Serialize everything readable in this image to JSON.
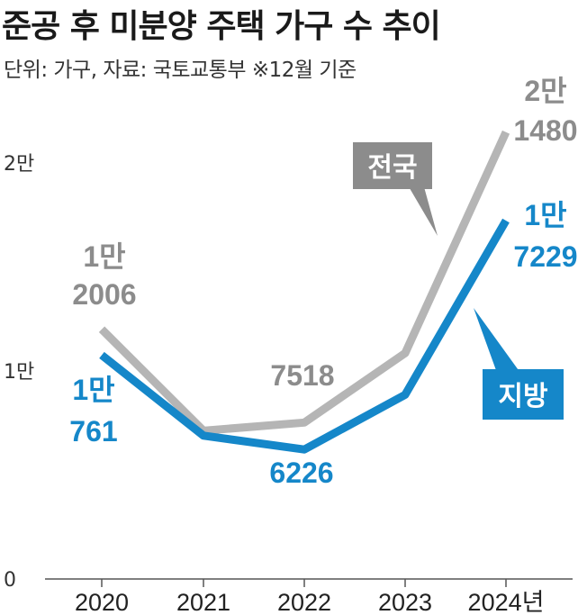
{
  "header": {
    "title": "준공 후 미분양 주택 가구 수 추이",
    "subtitle": "단위: 가구, 자료: 국토교통부 ※12월 기준"
  },
  "colors": {
    "national": "#b5b5b5",
    "regional": "#1587c9",
    "national_badge": "#8c8c8c",
    "regional_badge": "#1587c9"
  },
  "chart_data": {
    "type": "line",
    "categories": [
      "2020",
      "2021",
      "2022",
      "2023",
      "2024년"
    ],
    "ylim": [
      0,
      23000
    ],
    "yticks": [
      {
        "value": 0,
        "label": "0"
      },
      {
        "value": 10000,
        "label": "1만"
      },
      {
        "value": 20000,
        "label": "2만"
      }
    ],
    "grid": false,
    "legend": "inline-badges",
    "series": [
      {
        "name": "전국",
        "values": [
          12006,
          7130,
          7518,
          10857,
          21480
        ]
      },
      {
        "name": "지방",
        "values": [
          10761,
          6890,
          6226,
          8856,
          17229
        ]
      }
    ],
    "data_labels": [
      {
        "series": 0,
        "index": 0,
        "line1": "1만",
        "line2": "2006"
      },
      {
        "series": 0,
        "index": 2,
        "line1": "",
        "line2": "7518"
      },
      {
        "series": 0,
        "index": 4,
        "line1": "2만",
        "line2": "1480"
      },
      {
        "series": 1,
        "index": 0,
        "line1": "1만",
        "line2": "761"
      },
      {
        "series": 1,
        "index": 2,
        "line1": "",
        "line2": "6226"
      },
      {
        "series": 1,
        "index": 4,
        "line1": "1만",
        "line2": "7229"
      }
    ]
  }
}
